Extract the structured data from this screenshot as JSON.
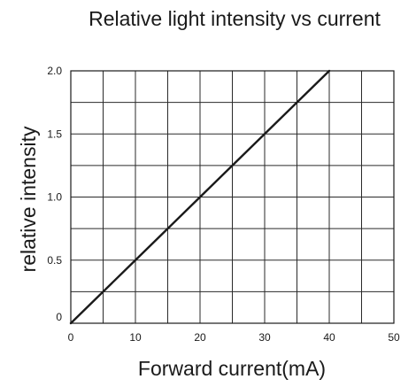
{
  "colors": {
    "background": "#ffffff",
    "line": "#1a1a1a",
    "grid": "#2a2a2a"
  },
  "chart_data": {
    "type": "line",
    "title": "Relative light intensity vs current",
    "xlabel": "Forward current(mA)",
    "ylabel": "relative intensity",
    "xlim": [
      0,
      50
    ],
    "ylim": [
      0,
      2.0
    ],
    "x_ticks": [
      0,
      10,
      20,
      30,
      40,
      50
    ],
    "x_tick_labels": [
      "0",
      "10",
      "20",
      "30",
      "40",
      "50"
    ],
    "y_ticks": [
      0,
      0.5,
      1.0,
      1.5,
      2.0
    ],
    "y_tick_labels": [
      "0",
      "0.5",
      "1.0",
      "1.5",
      "2.0"
    ],
    "x_minor_step": 5,
    "y_minor_step": 0.25,
    "grid": true,
    "legend": "none",
    "series": [
      {
        "x": [
          0,
          5,
          10,
          15,
          20,
          25,
          30,
          35,
          40
        ],
        "values": [
          0,
          0.25,
          0.5,
          0.75,
          1.0,
          1.25,
          1.5,
          1.75,
          2.0
        ]
      }
    ]
  }
}
